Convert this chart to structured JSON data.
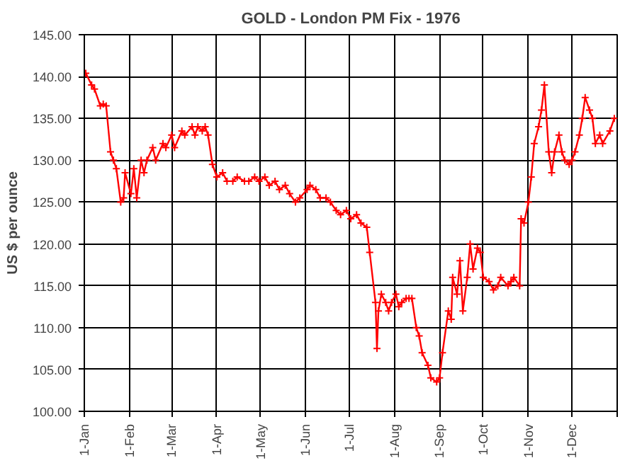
{
  "chart_data": {
    "type": "line",
    "title": "GOLD - London PM Fix - 1976",
    "ylabel": "US $ per ounce",
    "x": [
      "1976-01-02",
      "1976-01-06",
      "1976-01-08",
      "1976-01-12",
      "1976-01-14",
      "1976-01-16",
      "1976-01-19",
      "1976-01-21",
      "1976-01-23",
      "1976-01-26",
      "1976-01-28",
      "1976-01-29",
      "1976-02-02",
      "1976-02-04",
      "1976-02-06",
      "1976-02-09",
      "1976-02-11",
      "1976-02-13",
      "1976-02-17",
      "1976-02-19",
      "1976-02-24",
      "1976-02-26",
      "1976-03-01",
      "1976-03-03",
      "1976-03-08",
      "1976-03-10",
      "1976-03-15",
      "1976-03-17",
      "1976-03-19",
      "1976-03-22",
      "1976-03-24",
      "1976-03-26",
      "1976-03-29",
      "1976-04-01",
      "1976-04-05",
      "1976-04-08",
      "1976-04-12",
      "1976-04-15",
      "1976-04-20",
      "1976-04-23",
      "1976-04-27",
      "1976-04-30",
      "1976-05-04",
      "1976-05-07",
      "1976-05-11",
      "1976-05-14",
      "1976-05-18",
      "1976-05-21",
      "1976-05-25",
      "1976-05-28",
      "1976-06-02",
      "1976-06-04",
      "1976-06-08",
      "1976-06-11",
      "1976-06-15",
      "1976-06-18",
      "1976-06-22",
      "1976-06-25",
      "1976-06-29",
      "1976-07-02",
      "1976-07-06",
      "1976-07-09",
      "1976-07-13",
      "1976-07-15",
      "1976-07-19",
      "1976-07-20",
      "1976-07-21",
      "1976-07-23",
      "1976-07-26",
      "1976-07-28",
      "1976-07-30",
      "1976-08-02",
      "1976-08-04",
      "1976-08-06",
      "1976-08-09",
      "1976-08-11",
      "1976-08-13",
      "1976-08-16",
      "1976-08-18",
      "1976-08-20",
      "1976-08-24",
      "1976-08-26",
      "1976-08-30",
      "1976-09-01",
      "1976-09-03",
      "1976-09-07",
      "1976-09-09",
      "1976-09-10",
      "1976-09-13",
      "1976-09-15",
      "1976-09-17",
      "1976-09-20",
      "1976-09-22",
      "1976-09-24",
      "1976-09-27",
      "1976-09-29",
      "1976-10-01",
      "1976-10-05",
      "1976-10-08",
      "1976-10-11",
      "1976-10-13",
      "1976-10-18",
      "1976-10-20",
      "1976-10-22",
      "1976-10-26",
      "1976-10-27",
      "1976-10-29",
      "1976-11-01",
      "1976-11-03",
      "1976-11-05",
      "1976-11-08",
      "1976-11-10",
      "1976-11-12",
      "1976-11-15",
      "1976-11-17",
      "1976-11-19",
      "1976-11-22",
      "1976-11-24",
      "1976-11-26",
      "1976-11-29",
      "1976-12-01",
      "1976-12-03",
      "1976-12-06",
      "1976-12-08",
      "1976-12-10",
      "1976-12-13",
      "1976-12-15",
      "1976-12-17",
      "1976-12-20",
      "1976-12-22",
      "1976-12-27",
      "1976-12-30"
    ],
    "series": [
      {
        "color": "#ff0000",
        "values": [
          140.4,
          139,
          138.5,
          136.5,
          136.7,
          136.5,
          131,
          130,
          129,
          125,
          125.5,
          128.5,
          126,
          129,
          125.5,
          130,
          128.5,
          130,
          131.5,
          130,
          132,
          131.5,
          133,
          131.5,
          133.5,
          133,
          134,
          133,
          134,
          133.5,
          134,
          133,
          129.5,
          128,
          128.5,
          127.5,
          127.5,
          128,
          127.5,
          127.5,
          128,
          127.5,
          128,
          127,
          127.5,
          126.5,
          127,
          126,
          125,
          125.5,
          126.5,
          127,
          126.5,
          125.5,
          125.5,
          125,
          124,
          123.5,
          124,
          123,
          123.5,
          122.5,
          122,
          119,
          113,
          107.5,
          112,
          114,
          113,
          112,
          113,
          114,
          112.5,
          113,
          113.5,
          113.5,
          113.5,
          110,
          109,
          107,
          105.5,
          104,
          103.5,
          104,
          107,
          112,
          111,
          116,
          114,
          118,
          112,
          116,
          120,
          117,
          119.5,
          119,
          116,
          115.5,
          114.5,
          115,
          116,
          115,
          115.5,
          116,
          115,
          123,
          122.5,
          125,
          128,
          132,
          134,
          136,
          139,
          131,
          128.5,
          131,
          133,
          131,
          130,
          129.5,
          130,
          131,
          133,
          135,
          137.5,
          136,
          135,
          132,
          133,
          132,
          133.5,
          135
        ]
      }
    ],
    "xlim": [
      "1976-01-01",
      "1977-01-01"
    ],
    "xticks": [
      {
        "value": "1976-01-01",
        "label": "1-Jan"
      },
      {
        "value": "1976-02-01",
        "label": "1-Feb"
      },
      {
        "value": "1976-03-01",
        "label": "1-Mar"
      },
      {
        "value": "1976-04-01",
        "label": "1-Apr"
      },
      {
        "value": "1976-05-01",
        "label": "1-May"
      },
      {
        "value": "1976-06-01",
        "label": "1-Jun"
      },
      {
        "value": "1976-07-01",
        "label": "1-Jul"
      },
      {
        "value": "1976-08-01",
        "label": "1-Aug"
      },
      {
        "value": "1976-09-01",
        "label": "1-Sep"
      },
      {
        "value": "1976-10-01",
        "label": "1-Oct"
      },
      {
        "value": "1976-11-01",
        "label": "1-Nov"
      },
      {
        "value": "1976-12-01",
        "label": "1-Dec"
      },
      {
        "value": "1977-01-01",
        "label": null
      }
    ],
    "ylim": [
      100,
      145
    ],
    "yticks": [
      {
        "value": 100,
        "label": "100.00"
      },
      {
        "value": 105,
        "label": "105.00"
      },
      {
        "value": 110,
        "label": "110.00"
      },
      {
        "value": 115,
        "label": "115.00"
      },
      {
        "value": 120,
        "label": "120.00"
      },
      {
        "value": 125,
        "label": "125.00"
      },
      {
        "value": 130,
        "label": "130.00"
      },
      {
        "value": 135,
        "label": "135.00"
      },
      {
        "value": 140,
        "label": "140.00"
      },
      {
        "value": 145,
        "label": "145.00"
      }
    ],
    "grid": true,
    "marker": "cross",
    "line_style": "solid"
  }
}
